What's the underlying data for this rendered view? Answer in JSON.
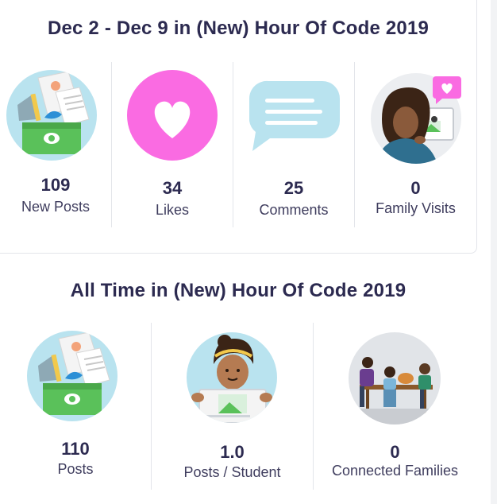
{
  "weekly": {
    "title": "Dec 2 - Dec 9 in (New) Hour Of Code 2019",
    "stats": [
      {
        "value": "109",
        "label": "New Posts",
        "icon": "posts-bucket-icon"
      },
      {
        "value": "34",
        "label": "Likes",
        "icon": "heart-icon"
      },
      {
        "value": "25",
        "label": "Comments",
        "icon": "comment-bubble-icon"
      },
      {
        "value": "0",
        "label": "Family Visits",
        "icon": "family-visit-icon"
      }
    ]
  },
  "alltime": {
    "title": "All Time in (New) Hour Of Code 2019",
    "stats": [
      {
        "value": "110",
        "label": "Posts",
        "icon": "posts-bucket-icon"
      },
      {
        "value": "1.0",
        "label": "Posts / Student",
        "icon": "student-icon"
      },
      {
        "value": "0",
        "label": "Connected Families",
        "icon": "family-table-icon"
      }
    ]
  },
  "colors": {
    "text": "#2c2a50",
    "light_blue": "#b9e3ef",
    "pink": "#fa6be2",
    "green": "#5ac15a"
  }
}
